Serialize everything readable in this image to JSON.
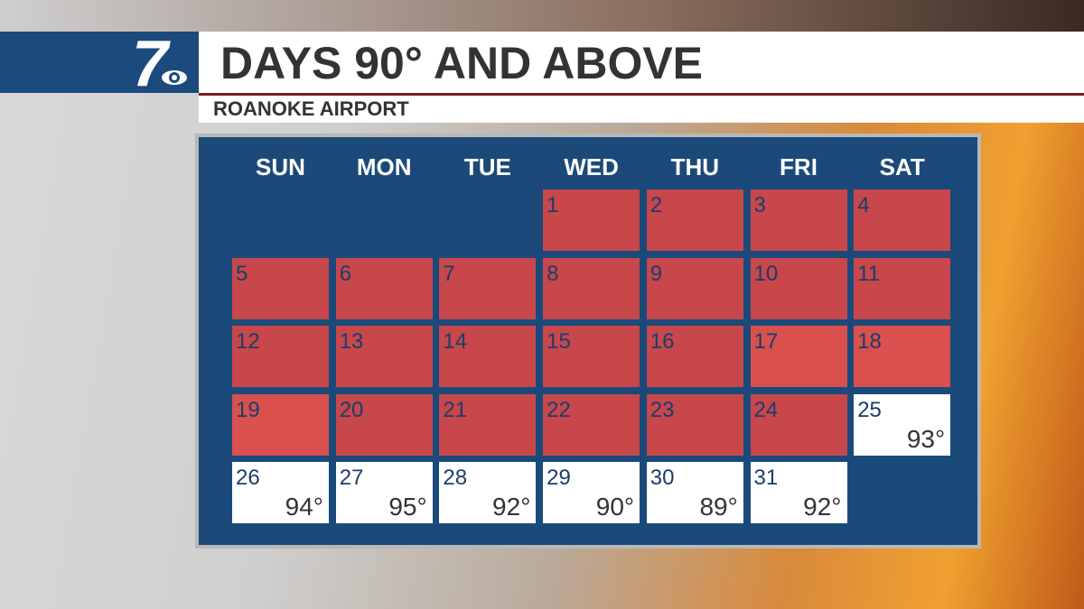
{
  "header": {
    "logo": "7",
    "title": "DAYS 90° AND ABOVE",
    "subtitle": "ROANOKE AIRPORT"
  },
  "calendar": {
    "weekdays": [
      "SUN",
      "MON",
      "TUE",
      "WED",
      "THU",
      "FRI",
      "SAT"
    ],
    "weeks": [
      [
        null,
        null,
        null,
        {
          "day": "1",
          "color": "#c7474b"
        },
        {
          "day": "2",
          "color": "#c7474b"
        },
        {
          "day": "3",
          "color": "#c7474b"
        },
        {
          "day": "4",
          "color": "#c7474b"
        }
      ],
      [
        {
          "day": "5",
          "color": "#c7474b"
        },
        {
          "day": "6",
          "color": "#c7474b"
        },
        {
          "day": "7",
          "color": "#c7474b"
        },
        {
          "day": "8",
          "color": "#c7474b"
        },
        {
          "day": "9",
          "color": "#c7474b"
        },
        {
          "day": "10",
          "color": "#c7474b"
        },
        {
          "day": "11",
          "color": "#c7474b"
        }
      ],
      [
        {
          "day": "12",
          "color": "#c7474b"
        },
        {
          "day": "13",
          "color": "#c7474b"
        },
        {
          "day": "14",
          "color": "#c7474b"
        },
        {
          "day": "15",
          "color": "#c7474b"
        },
        {
          "day": "16",
          "color": "#c7474b"
        },
        {
          "day": "17",
          "color": "#d9504f"
        },
        {
          "day": "18",
          "color": "#d9504f"
        }
      ],
      [
        {
          "day": "19",
          "color": "#d9504f"
        },
        {
          "day": "20",
          "color": "#c7474b"
        },
        {
          "day": "21",
          "color": "#c7474b"
        },
        {
          "day": "22",
          "color": "#c7474b"
        },
        {
          "day": "23",
          "color": "#c7474b"
        },
        {
          "day": "24",
          "color": "#c7474b"
        },
        {
          "day": "25",
          "temp": "93°",
          "color": "#ffffff"
        }
      ],
      [
        {
          "day": "26",
          "temp": "94°",
          "color": "#ffffff"
        },
        {
          "day": "27",
          "temp": "95°",
          "color": "#ffffff"
        },
        {
          "day": "28",
          "temp": "92°",
          "color": "#ffffff"
        },
        {
          "day": "29",
          "temp": "90°",
          "color": "#ffffff"
        },
        {
          "day": "30",
          "temp": "89°",
          "color": "#ffffff"
        },
        {
          "day": "31",
          "temp": "92°",
          "color": "#ffffff"
        },
        null
      ]
    ]
  }
}
